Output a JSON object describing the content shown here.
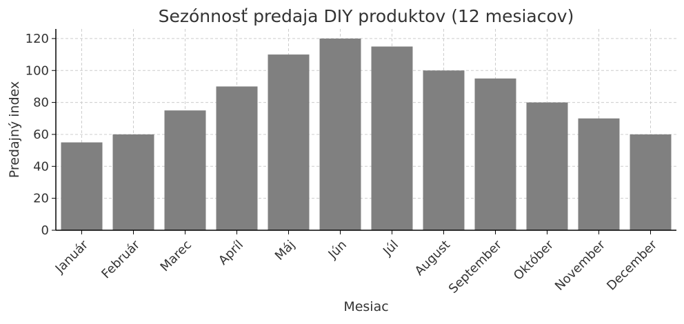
{
  "chart_data": {
    "type": "bar",
    "title": "Sezónnosť predaja DIY produktov (12 mesiacov)",
    "xlabel": "Mesiac",
    "ylabel": "Predajný index",
    "categories": [
      "Január",
      "Február",
      "Marec",
      "Apríl",
      "Máj",
      "Jún",
      "Júl",
      "August",
      "September",
      "Október",
      "November",
      "December"
    ],
    "values": [
      55,
      60,
      75,
      90,
      110,
      120,
      115,
      100,
      95,
      80,
      70,
      60
    ],
    "ylim": [
      0,
      126
    ],
    "yticks": [
      0,
      20,
      40,
      60,
      80,
      100,
      120
    ],
    "grid": true,
    "bar_color": "#808080",
    "grid_color": "#cccccc",
    "axis_color": "#000000",
    "text_color": "#333333"
  }
}
